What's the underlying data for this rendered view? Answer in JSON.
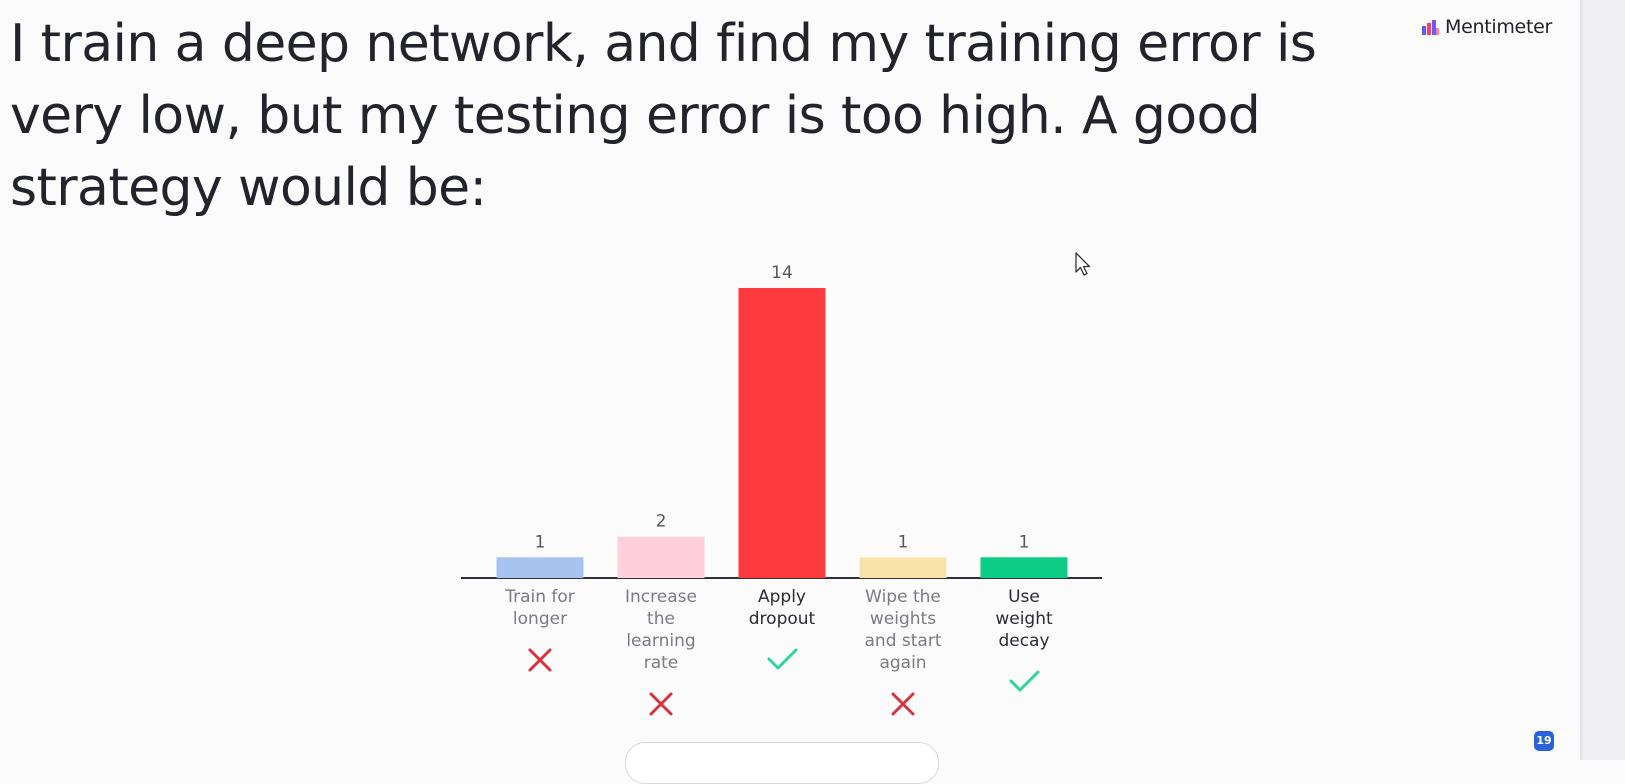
{
  "slide": {
    "question": "I train a deep network, and find my training error is very low, but my testing error is too high. A good strategy would be:",
    "brand": {
      "name": "Mentimeter",
      "icon": "mentimeter-logo-icon"
    },
    "participant_count": "19"
  },
  "chart_data": {
    "type": "bar",
    "title": "",
    "xlabel": "",
    "ylabel": "",
    "categories": [
      "Train for longer",
      "Increase the learning rate",
      "Apply dropout",
      "Wipe the weights and start again",
      "Use weight decay"
    ],
    "label_lines": [
      [
        "Train for",
        "longer"
      ],
      [
        "Increase",
        "the",
        "learning",
        "rate"
      ],
      [
        "Apply",
        "dropout"
      ],
      [
        "Wipe the",
        "weights",
        "and start",
        "again"
      ],
      [
        "Use",
        "weight",
        "decay"
      ]
    ],
    "values": [
      1,
      2,
      14,
      1,
      1
    ],
    "value_labels": [
      "1",
      "2",
      "14",
      "1",
      "1"
    ],
    "colors": [
      "#a6c4ef",
      "#fdd0db",
      "#fc3a3e",
      "#f8e3a9",
      "#0dcc86"
    ],
    "correct": [
      false,
      false,
      true,
      false,
      true
    ],
    "marker_colors": {
      "correct": "#2fd3a0",
      "incorrect": "#d8323c"
    },
    "marker_icons": {
      "correct": "checkmark-icon",
      "incorrect": "cross-icon"
    },
    "ylim": [
      0,
      14
    ],
    "grid": false,
    "legend": "none"
  }
}
